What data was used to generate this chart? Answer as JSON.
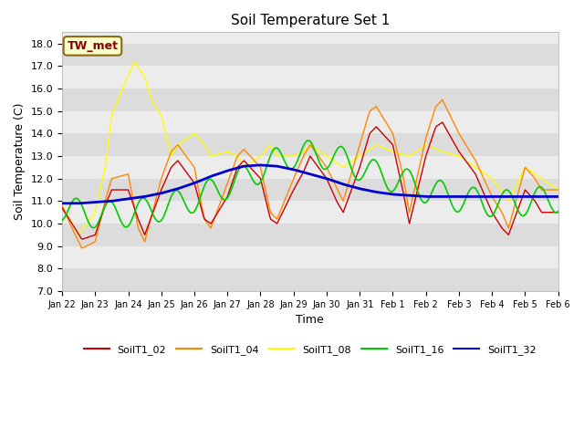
{
  "title": "Soil Temperature Set 1",
  "xlabel": "Time",
  "ylabel": "Soil Temperature (C)",
  "ylim": [
    7.0,
    18.5
  ],
  "yticks": [
    7.0,
    8.0,
    9.0,
    10.0,
    11.0,
    12.0,
    13.0,
    14.0,
    15.0,
    16.0,
    17.0,
    18.0
  ],
  "annotation": "TW_met",
  "fig_bg": "#ffffff",
  "plot_bg_light": "#ececec",
  "plot_bg_dark": "#dcdcdc",
  "series_colors": {
    "SoilT1_02": "#cc0000",
    "SoilT1_04": "#ff8800",
    "SoilT1_08": "#ffff00",
    "SoilT1_16": "#00cc00",
    "SoilT1_32": "#0000cc"
  },
  "xtick_labels": [
    "Jan 22",
    "Jan 23",
    "Jan 24",
    "Jan 25",
    "Jan 26",
    "Jan 27",
    "Jan 28",
    "Jan 29",
    "Jan 30",
    "Jan 31",
    "Feb 1",
    "Feb 2",
    "Feb 3",
    "Feb 4",
    "Feb 5",
    "Feb 6"
  ],
  "num_points": 481,
  "time_days": 15,
  "SoilT1_32_base": [
    10.9,
    10.9,
    10.95,
    11.0,
    11.1,
    11.2,
    11.35,
    11.55,
    11.8,
    12.1,
    12.35,
    12.55,
    12.6,
    12.55,
    12.4,
    12.2,
    12.0,
    11.75,
    11.55,
    11.4,
    11.3,
    11.25,
    11.2,
    11.2,
    11.2,
    11.2,
    11.2,
    11.2,
    11.2,
    11.2,
    11.2
  ],
  "SoilT1_16_base": [
    10.7,
    10.5,
    10.4,
    10.4,
    10.45,
    10.55,
    10.7,
    10.9,
    11.1,
    11.4,
    11.7,
    12.0,
    12.4,
    12.8,
    13.05,
    13.1,
    13.0,
    12.8,
    12.5,
    12.2,
    12.0,
    11.8,
    11.5,
    11.3,
    11.1,
    11.0,
    10.9,
    10.9,
    10.95,
    11.05,
    11.1
  ]
}
